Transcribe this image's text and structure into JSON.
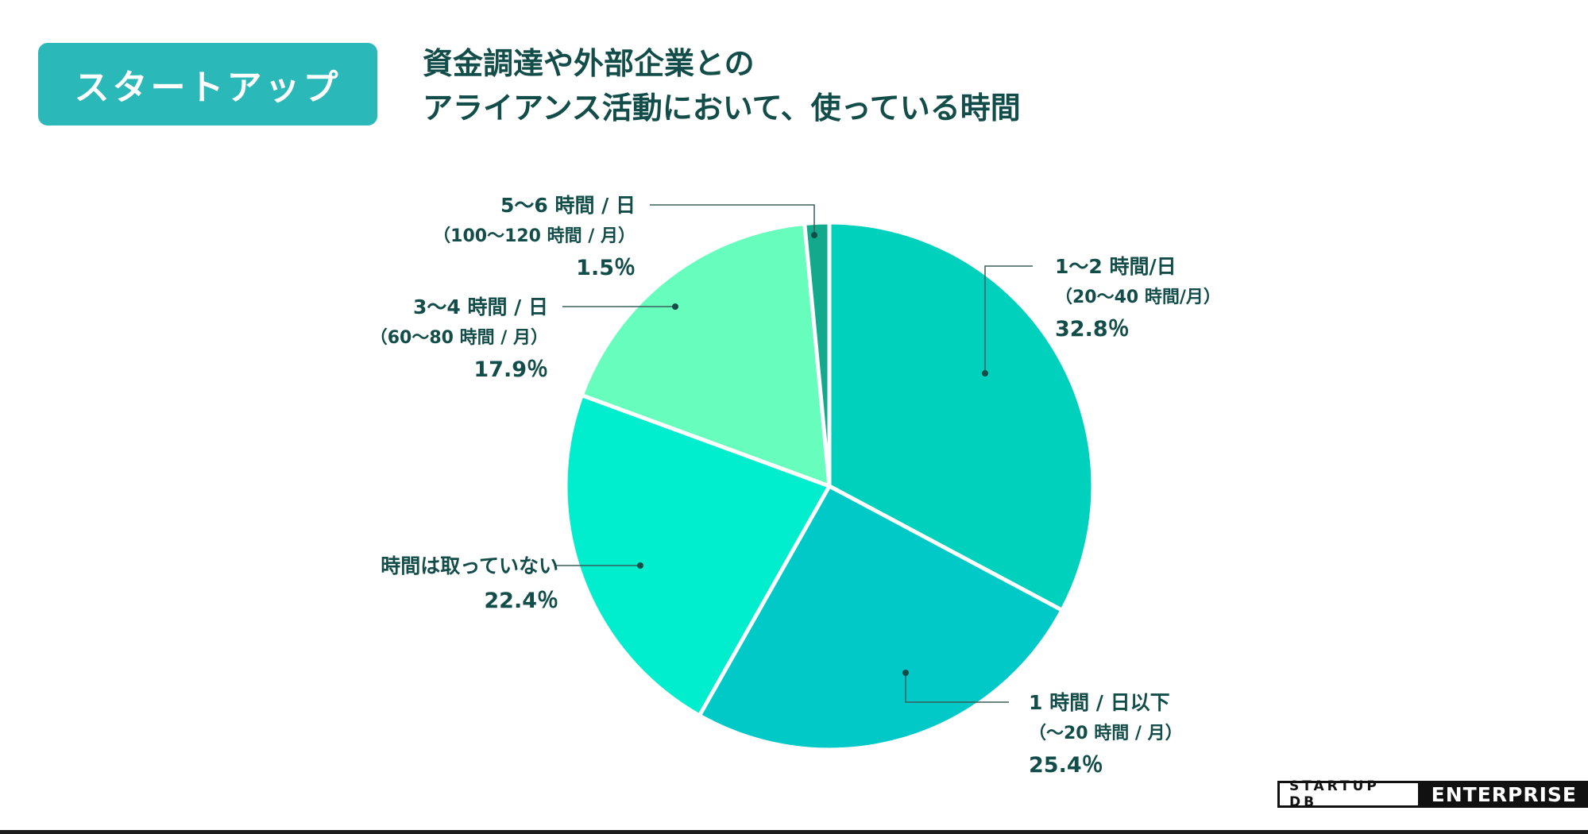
{
  "header": {
    "badge_label": "スタートアップ",
    "title_line1": "資金調達や外部企業との",
    "title_line2": "アライアンス活動において、使っている時間"
  },
  "colors": {
    "badge": "#2bb8b8",
    "text": "#134d49",
    "leader": "#3b5e5b"
  },
  "chart_data": {
    "type": "pie",
    "start": "12 o'clock",
    "direction": "clockwise",
    "slices": [
      {
        "label": "1〜2 時間/日",
        "sublabel": "（20〜40 時間/月）",
        "value": 32.8,
        "value_text": "32.8％",
        "color": "#00d1bd"
      },
      {
        "label": "1 時間 / 日以下",
        "sublabel": "（〜20 時間 / 月）",
        "value": 25.4,
        "value_text": "25.4％",
        "color": "#00c9c8"
      },
      {
        "label": "時間は取っていない",
        "sublabel": "",
        "value": 22.4,
        "value_text": "22.4％",
        "color": "#00eecd"
      },
      {
        "label": "3〜4 時間 / 日",
        "sublabel": "（60〜80 時間 / 月）",
        "value": 17.9,
        "value_text": "17.9％",
        "color": "#66fdbd"
      },
      {
        "label": "5〜6 時間 / 日",
        "sublabel": "（100〜120 時間 / 月）",
        "value": 1.5,
        "value_text": "1.5％",
        "color": "#12a98d"
      }
    ]
  },
  "logo": {
    "left": "STARTUP DB",
    "right": "ENTERPRISE"
  }
}
